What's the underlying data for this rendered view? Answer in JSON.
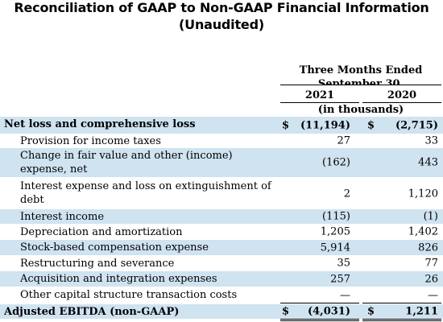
{
  "title": "Reconciliation of GAAP to Non-GAAP Financial Information",
  "subtitle": "(Unaudited)",
  "period_header": "Three Months Ended September 30,",
  "years": [
    "2021",
    "2020"
  ],
  "units": "(in thousands)",
  "currency_symbol": "$",
  "rows": [
    {
      "label": "Net loss and comprehensive loss",
      "v2021": "(11,194)",
      "v2020": "(2,715)"
    },
    {
      "label": "Provision for income taxes",
      "v2021": "27",
      "v2020": "33"
    },
    {
      "label": "Change in fair value and other (income) expense, net",
      "v2021": "(162)",
      "v2020": "443"
    },
    {
      "label": "Interest expense and loss on extinguishment of debt",
      "v2021": "2",
      "v2020": "1,120"
    },
    {
      "label": "Interest income",
      "v2021": "(115)",
      "v2020": "(1)"
    },
    {
      "label": "Depreciation and amortization",
      "v2021": "1,205",
      "v2020": "1,402"
    },
    {
      "label": "Stock-based compensation expense",
      "v2021": "5,914",
      "v2020": "826"
    },
    {
      "label": "Restructuring and severance",
      "v2021": "35",
      "v2020": "77"
    },
    {
      "label": "Acquisition and integration expenses",
      "v2021": "257",
      "v2020": "26"
    },
    {
      "label": "Other capital structure transaction costs",
      "v2021": "—",
      "v2020": "—"
    },
    {
      "label": "Adjusted EBITDA (non-GAAP)",
      "v2021": "(4,031)",
      "v2020": "1,211"
    }
  ]
}
